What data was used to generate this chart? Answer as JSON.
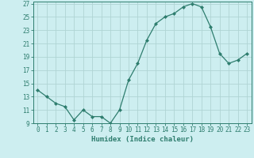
{
  "x": [
    0,
    1,
    2,
    3,
    4,
    5,
    6,
    7,
    8,
    9,
    10,
    11,
    12,
    13,
    14,
    15,
    16,
    17,
    18,
    19,
    20,
    21,
    22,
    23
  ],
  "y": [
    14.0,
    13.0,
    12.0,
    11.5,
    9.5,
    11.0,
    10.0,
    10.0,
    9.0,
    11.0,
    15.5,
    18.0,
    21.5,
    24.0,
    25.0,
    25.5,
    26.5,
    27.0,
    26.5,
    23.5,
    19.5,
    18.0,
    18.5,
    19.5
  ],
  "line_color": "#2e7d6e",
  "marker": "D",
  "markersize": 2.0,
  "linewidth": 0.9,
  "bg_color": "#cdeef0",
  "grid_color": "#b0d4d4",
  "xlabel": "Humidex (Indice chaleur)",
  "ylim": [
    9,
    27
  ],
  "xlim": [
    -0.5,
    23.5
  ],
  "yticks": [
    9,
    11,
    13,
    15,
    17,
    19,
    21,
    23,
    25,
    27
  ],
  "xticks": [
    0,
    1,
    2,
    3,
    4,
    5,
    6,
    7,
    8,
    9,
    10,
    11,
    12,
    13,
    14,
    15,
    16,
    17,
    18,
    19,
    20,
    21,
    22,
    23
  ],
  "label_fontsize": 6.5,
  "tick_fontsize": 5.5
}
